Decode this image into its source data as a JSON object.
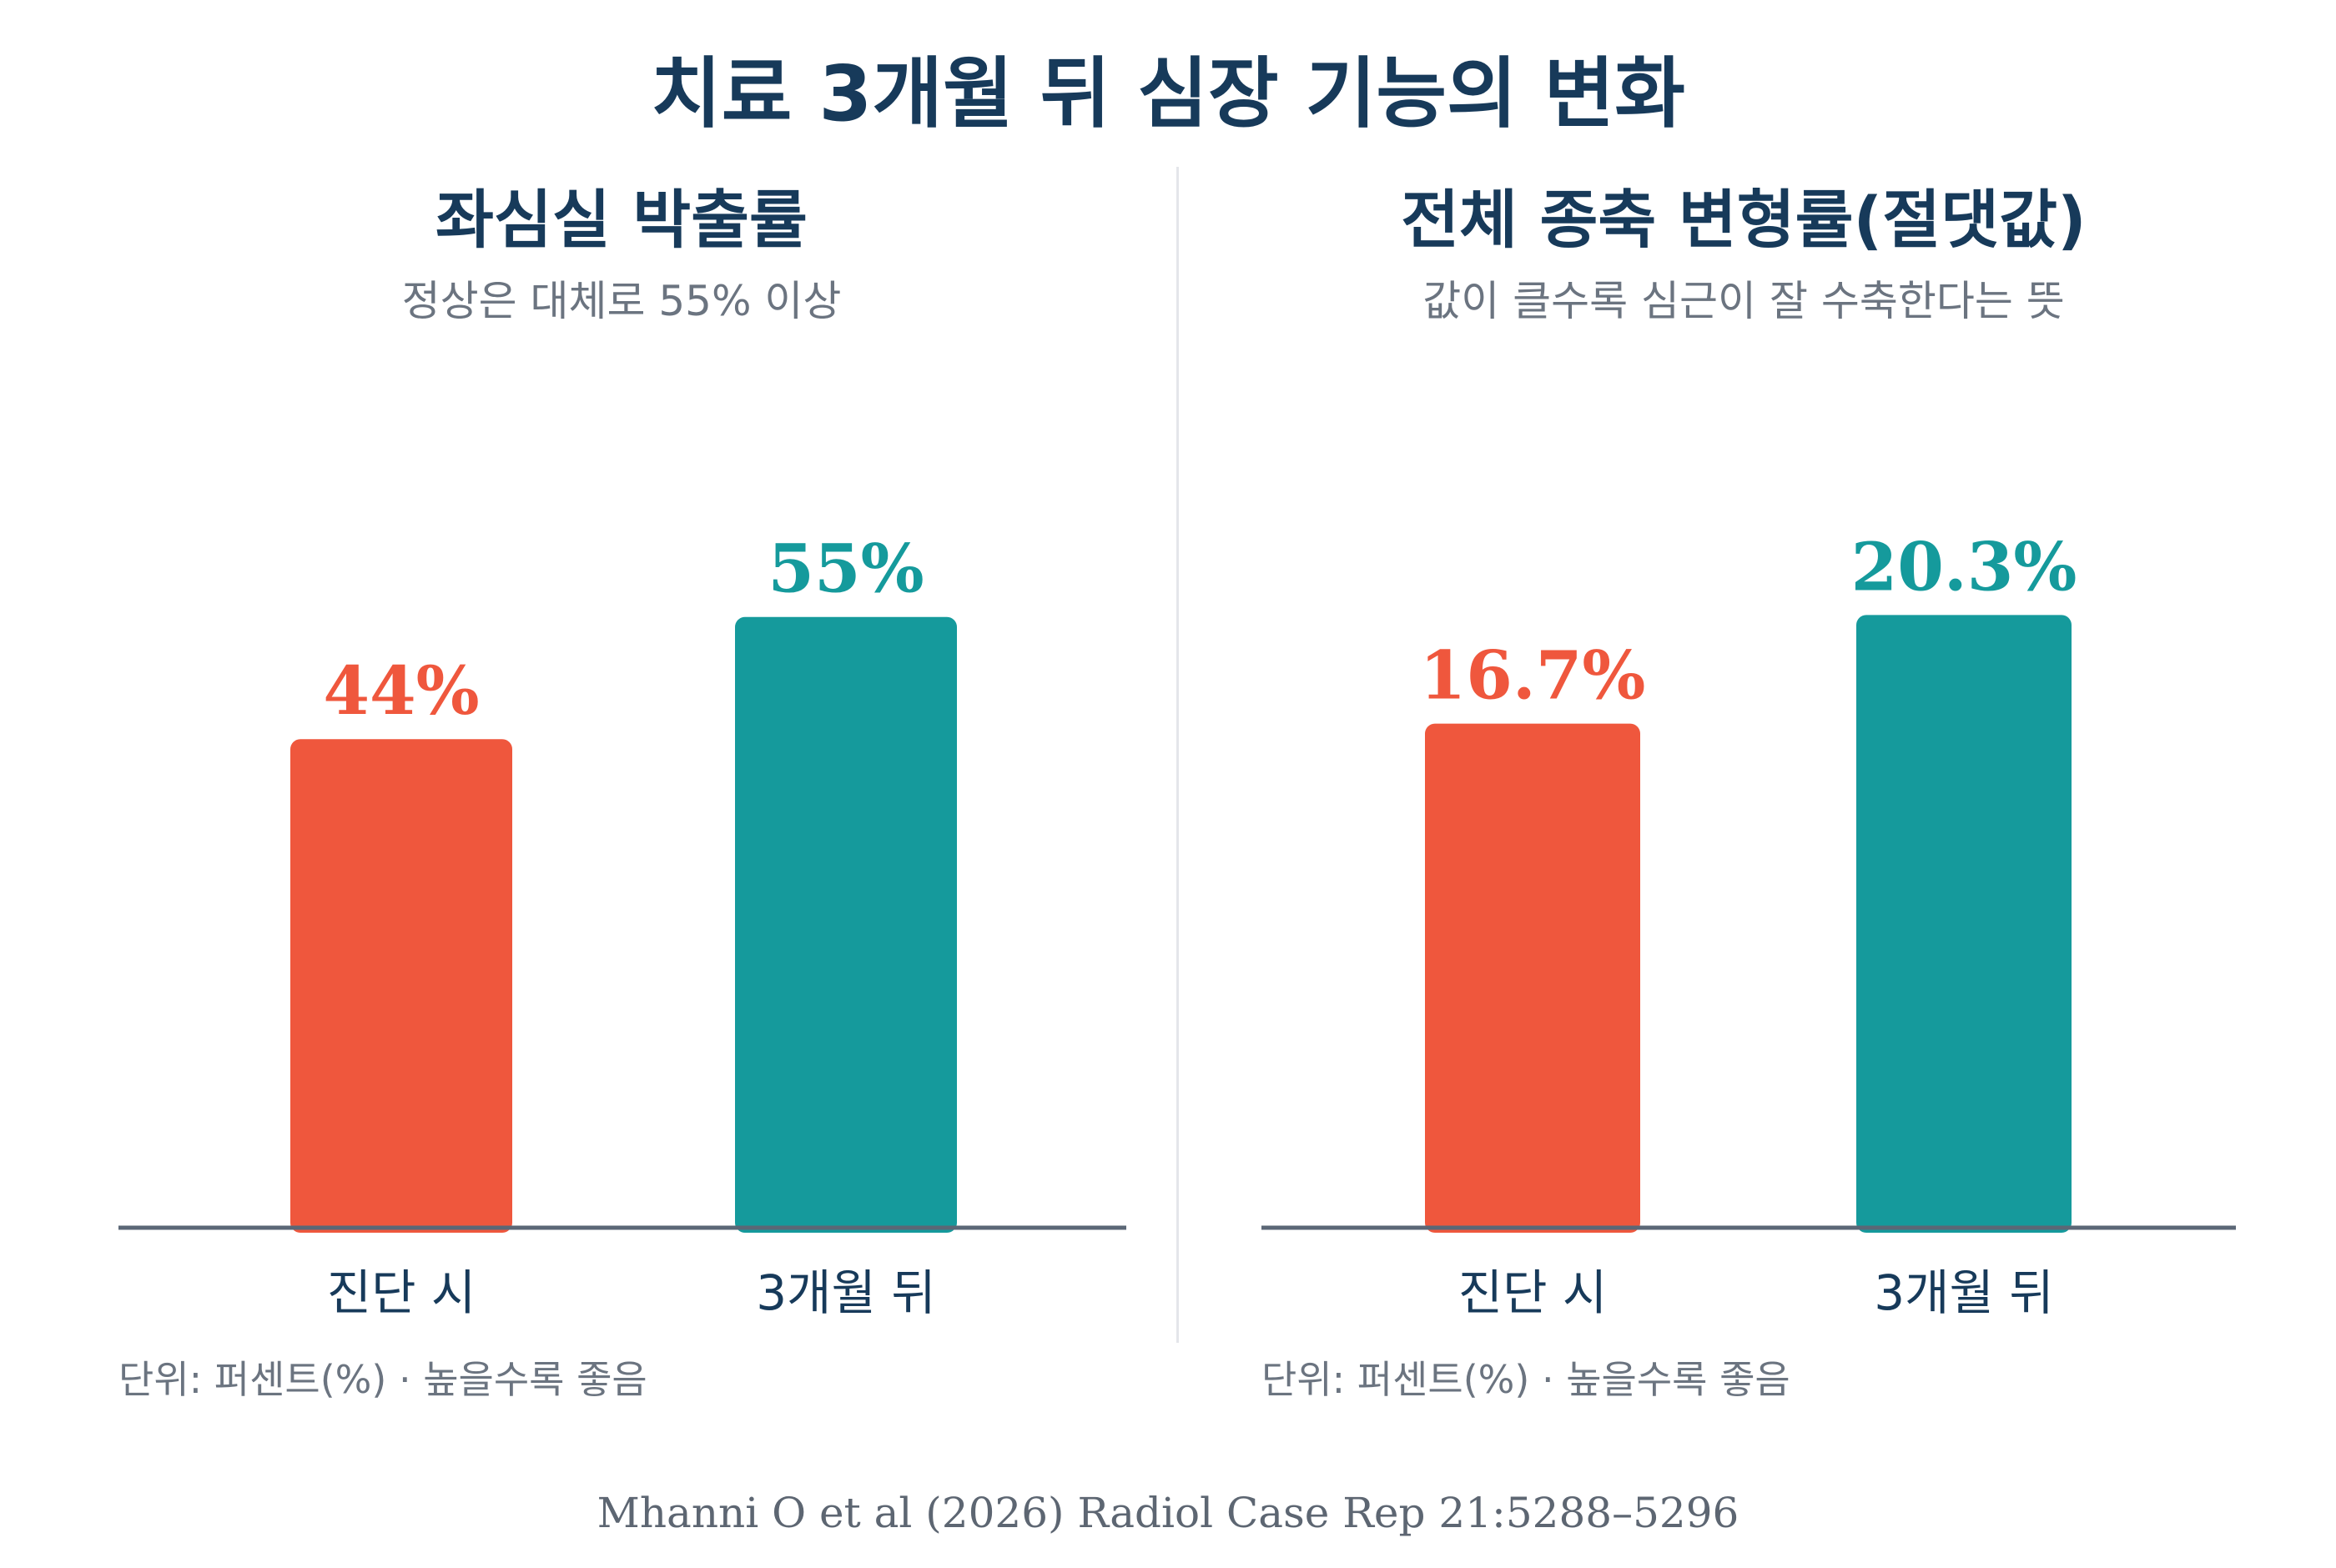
{
  "title": "치료 3개월 뒤 심장 기능의 변화",
  "colors": {
    "title": "#173a5a",
    "subtitle": "#6b7480",
    "before": "#ef573d",
    "after": "#159a9c",
    "axis": "#5b6776",
    "note": "#6b7480",
    "divider": "#e4e6ea"
  },
  "chart_data": [
    {
      "type": "bar",
      "title": "좌심실 박출률",
      "subtitle": "정상은 대체로 55% 이상",
      "categories": [
        "진단 시",
        "3개월 뒤"
      ],
      "values": [
        44,
        55
      ],
      "value_labels": [
        "44%",
        "55%"
      ],
      "ylim": [
        0,
        68.5
      ],
      "note": "단위: 퍼센트(%) · 높을수록 좋음"
    },
    {
      "type": "bar",
      "title": "전체 종축 변형률(절댓값)",
      "subtitle": "값이 클수록 심근이 잘 수축한다는 뜻",
      "categories": [
        "진단 시",
        "3개월 뒤"
      ],
      "values": [
        16.7,
        20.3
      ],
      "value_labels": [
        "16.7%",
        "20.3%"
      ],
      "ylim": [
        0,
        25.2
      ],
      "note": "단위: 퍼센트(%) · 높을수록 좋음"
    }
  ],
  "source": "Mhanni O et al (2026) Radiol Case Rep 21:5288–5296"
}
